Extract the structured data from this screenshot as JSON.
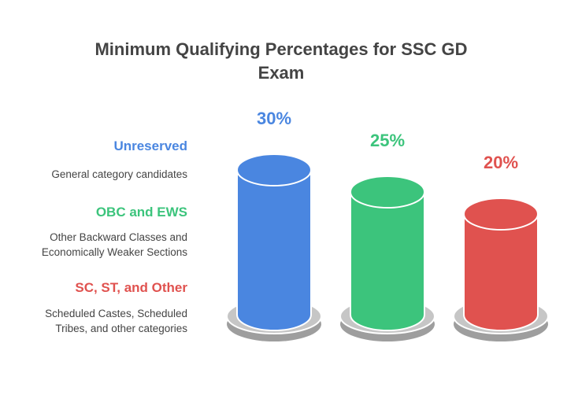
{
  "chart_data": {
    "type": "cylinder",
    "title": "Minimum Qualifying Percentages for SSC GD Exam",
    "categories": [
      "Unreserved",
      "OBC and EWS",
      "SC, ST, and Other"
    ],
    "descriptions": [
      "General category candidates",
      "Other Backward Classes and Economically Weaker Sections",
      "Scheduled Castes, Scheduled Tribes, and other categories"
    ],
    "values": [
      30,
      25,
      20
    ],
    "value_labels": [
      "30%",
      "25%",
      "20%"
    ],
    "colors": [
      "#4a86e0",
      "#3cc47c",
      "#e0524f"
    ]
  }
}
